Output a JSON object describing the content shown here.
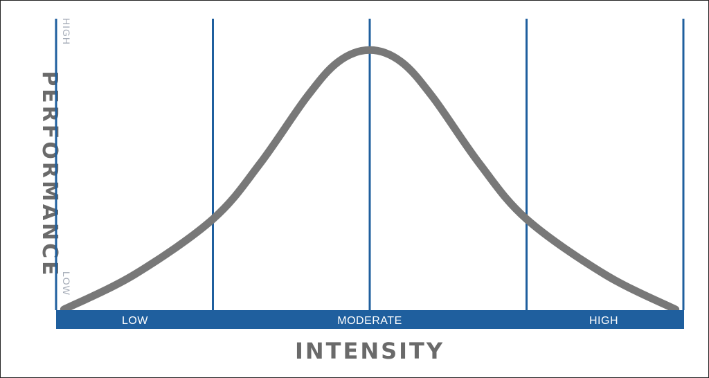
{
  "chart_data": {
    "type": "line",
    "title": "",
    "xlabel": "INTENSITY",
    "ylabel": "PERFORMANCE",
    "y_tick_labels": [
      "LOW",
      "HIGH"
    ],
    "x_bands": [
      "LOW",
      "MODERATE",
      "HIGH"
    ],
    "xlim": [
      0,
      4
    ],
    "ylim": [
      0,
      1
    ],
    "grid": false,
    "legend": "none",
    "series": [
      {
        "x": [
          0.05,
          0.5,
          1.0,
          1.3,
          1.6,
          1.8,
          2.0,
          2.2,
          2.4,
          2.7,
          3.0,
          3.5,
          3.95
        ],
        "values": [
          0.0,
          0.12,
          0.31,
          0.5,
          0.73,
          0.85,
          0.89,
          0.85,
          0.73,
          0.5,
          0.31,
          0.12,
          0.0
        ]
      }
    ],
    "colors": {
      "curve": "#787878",
      "dividers": "#1f5f9e",
      "band": "#1f5f9e",
      "band_text": "#ffffff",
      "axis_title": "#6a6a6a",
      "tick_text": "#a3aab6"
    }
  }
}
